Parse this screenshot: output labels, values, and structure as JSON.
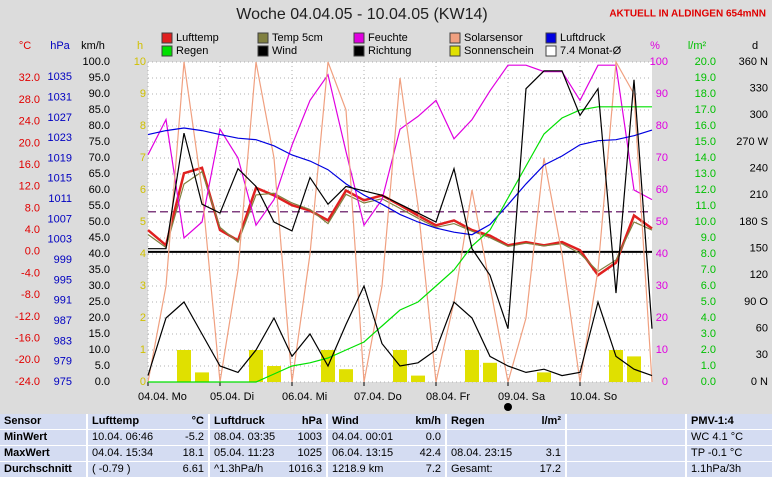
{
  "chart_data": {
    "type": "line",
    "title": "Woche 04.04.05 - 10.04.05 (KW14)",
    "subtitle": "AKTUELL IN ALDINGEN 654mNN",
    "xlim": [
      0,
      7
    ],
    "xticks": [
      {
        "value": 0,
        "label": "04.04. Mo"
      },
      {
        "value": 1,
        "label": "05.04. Di"
      },
      {
        "value": 2,
        "label": "06.04. Mi"
      },
      {
        "value": 3,
        "label": "07.04. Do"
      },
      {
        "value": 4,
        "label": "08.04. Fr"
      },
      {
        "value": 5,
        "label": "09.04. Sa"
      },
      {
        "value": 6,
        "label": "10.04. So"
      }
    ],
    "grid": true,
    "axes": [
      {
        "unit": "°C",
        "color": "#e00000",
        "lim": [
          -24,
          35
        ],
        "zero_line": true,
        "ticks": [
          {
            "value": 32,
            "label": "32.0"
          },
          {
            "value": 28,
            "label": "28.0"
          },
          {
            "value": 24,
            "label": "24.0"
          },
          {
            "value": 20,
            "label": "20.0"
          },
          {
            "value": 16,
            "label": "16.0"
          },
          {
            "value": 12,
            "label": "12.0"
          },
          {
            "value": 8,
            "label": "8.0"
          },
          {
            "value": 4,
            "label": "4.0"
          },
          {
            "value": 0,
            "label": "0.0"
          },
          {
            "value": -4,
            "label": "-4.0"
          },
          {
            "value": -8,
            "label": "-8.0"
          },
          {
            "value": -12,
            "label": "-12.0"
          },
          {
            "value": -16,
            "label": "-16.0"
          },
          {
            "value": -20,
            "label": "-20.0"
          },
          {
            "value": -24,
            "label": "-24.0"
          }
        ]
      },
      {
        "unit": "hPa",
        "color": "#0000c0",
        "lim": [
          975,
          1038
        ],
        "ticks": [
          1035,
          1031,
          1027,
          1023,
          1019,
          1015,
          1011,
          1007,
          1003,
          999,
          995,
          991,
          987,
          983,
          979,
          975
        ]
      },
      {
        "unit": "km/h",
        "color": "#000000",
        "lim": [
          0,
          100
        ],
        "grid": true,
        "ticks": [
          {
            "value": 100,
            "label": "100.0"
          },
          {
            "value": 95,
            "label": "95.0"
          },
          {
            "value": 90,
            "label": "90.0"
          },
          {
            "value": 85,
            "label": "85.0"
          },
          {
            "value": 80,
            "label": "80.0"
          },
          {
            "value": 75,
            "label": "75.0"
          },
          {
            "value": 70,
            "label": "70.0"
          },
          {
            "value": 65,
            "label": "65.0"
          },
          {
            "value": 60,
            "label": "60.0"
          },
          {
            "value": 55,
            "label": "55.0"
          },
          {
            "value": 50,
            "label": "50.0"
          },
          {
            "value": 45,
            "label": "45.0"
          },
          {
            "value": 40,
            "label": "40.0"
          },
          {
            "value": 35,
            "label": "35.0"
          },
          {
            "value": 30,
            "label": "30.0"
          },
          {
            "value": 25,
            "label": "25.0"
          },
          {
            "value": 20,
            "label": "20.0"
          },
          {
            "value": 15,
            "label": "15.0"
          },
          {
            "value": 10,
            "label": "10.0"
          },
          {
            "value": 5,
            "label": "5.0"
          },
          {
            "value": 0,
            "label": "0.0"
          }
        ]
      },
      {
        "unit": "h",
        "color": "#d0c000",
        "lim": [
          0,
          10
        ],
        "ticks": [
          10,
          9,
          8,
          7,
          6,
          5,
          4,
          3,
          2,
          1,
          0
        ]
      },
      {
        "unit": "%",
        "color": "#e000e0",
        "lim": [
          0,
          100
        ],
        "ticks": [
          100,
          90,
          80,
          70,
          60,
          50,
          40,
          30,
          20,
          10,
          0
        ]
      },
      {
        "unit": "l/m²",
        "color": "#00c000",
        "lim": [
          0,
          20
        ],
        "ticks": [
          {
            "value": 20,
            "label": "20.0"
          },
          {
            "value": 19,
            "label": "19.0"
          },
          {
            "value": 18,
            "label": "18.0"
          },
          {
            "value": 17,
            "label": "17.0"
          },
          {
            "value": 16,
            "label": "16.0"
          },
          {
            "value": 15,
            "label": "15.0"
          },
          {
            "value": 14,
            "label": "14.0"
          },
          {
            "value": 13,
            "label": "13.0"
          },
          {
            "value": 12,
            "label": "12.0"
          },
          {
            "value": 11,
            "label": "11.0"
          },
          {
            "value": 10,
            "label": "10.0"
          },
          {
            "value": 9,
            "label": "9.0"
          },
          {
            "value": 8,
            "label": "8.0"
          },
          {
            "value": 7,
            "label": "7.0"
          },
          {
            "value": 6,
            "label": "6.0"
          },
          {
            "value": 5,
            "label": "5.0"
          },
          {
            "value": 4,
            "label": "4.0"
          },
          {
            "value": 3,
            "label": "3.0"
          },
          {
            "value": 2,
            "label": "2.0"
          },
          {
            "value": 1,
            "label": "1.0"
          },
          {
            "value": 0,
            "label": "0.0"
          }
        ]
      },
      {
        "unit": "d",
        "color": "#000000",
        "lim": [
          0,
          360
        ],
        "ticks": [
          {
            "value": 360,
            "label": "360 N"
          },
          330,
          300,
          {
            "value": 270,
            "label": "270 W"
          },
          240,
          210,
          {
            "value": 180,
            "label": "180 S"
          },
          150,
          120,
          {
            "value": 90,
            "label": "90 O"
          },
          60,
          30,
          {
            "value": 0,
            "label": "0 N"
          }
        ]
      }
    ],
    "x": [
      0,
      0.25,
      0.5,
      0.75,
      1,
      1.25,
      1.5,
      1.75,
      2,
      2.25,
      2.5,
      2.75,
      3,
      3.25,
      3.5,
      3.75,
      4,
      4.25,
      4.5,
      4.75,
      5,
      5.25,
      5.5,
      5.75,
      6,
      6.25,
      6.5,
      6.75,
      7
    ],
    "series": [
      {
        "name": "Lufttemp",
        "color": "#e02020",
        "axis": "°C",
        "values": [
          4.0,
          1.2,
          14.5,
          15.5,
          4.0,
          2.1,
          11.8,
          10.4,
          8.6,
          7.6,
          5.8,
          11.3,
          9.5,
          10.4,
          8.6,
          6.7,
          4.9,
          5.8,
          4.0,
          3.0,
          1.2,
          1.8,
          1.2,
          1.8,
          0.3,
          -4.3,
          -2.0,
          6.7,
          4.3
        ]
      },
      {
        "name": "Temp 5cm",
        "color": "#808040",
        "axis": "°C",
        "values": [
          3.2,
          0.8,
          12.5,
          14.8,
          4.5,
          1.8,
          10.5,
          10.8,
          9.0,
          7.8,
          5.2,
          10.6,
          9.0,
          9.8,
          8.0,
          6.2,
          4.5,
          5.2,
          3.8,
          2.6,
          1.0,
          1.6,
          1.1,
          1.5,
          -0.3,
          -3.6,
          -1.5,
          5.5,
          4.0
        ]
      },
      {
        "name": "Feuchte",
        "color": "#e000e0",
        "axis": "%",
        "values": [
          71,
          82,
          45,
          50,
          79,
          70,
          49,
          57,
          74,
          88,
          96,
          72,
          49,
          57,
          79,
          83,
          88,
          76,
          82,
          91,
          99,
          99,
          97,
          97,
          88,
          99,
          99,
          60,
          57
        ]
      },
      {
        "name": "Solarsensor",
        "color": "#f0a080",
        "axis": "%",
        "values": [
          0,
          30,
          100,
          60,
          0,
          35,
          100,
          70,
          0,
          40,
          100,
          85,
          0,
          30,
          95,
          55,
          0,
          25,
          60,
          30,
          0,
          20,
          70,
          40,
          0,
          35,
          100,
          90,
          0
        ]
      },
      {
        "name": "Luftdruck",
        "color": "#0000e0",
        "axis": "hPa",
        "values": [
          1023.7,
          1024.5,
          1025,
          1024.5,
          1023.7,
          1023,
          1022.7,
          1021.5,
          1019.7,
          1018.5,
          1016.8,
          1014,
          1011.8,
          1010,
          1008,
          1006.5,
          1005.3,
          1004.5,
          1004,
          1006,
          1009.9,
          1014,
          1017.7,
          1019.5,
          1021.7,
          1022.5,
          1022.7,
          1023.5,
          1024.6
        ]
      },
      {
        "name": "Regen",
        "color": "#00e000",
        "axis": "l/m²",
        "values": [
          0,
          0,
          0,
          0,
          0,
          0,
          0,
          0.5,
          1.0,
          1.2,
          1.5,
          2.0,
          2.5,
          3.5,
          4.5,
          5.0,
          6.0,
          7.0,
          8.5,
          9.5,
          11.5,
          13.5,
          15.5,
          16.5,
          17.0,
          17.2,
          17.2,
          17.2,
          17.2
        ]
      },
      {
        "name": "Wind",
        "color": "#000000",
        "axis": "km/h",
        "values": [
          2,
          20,
          25,
          15,
          5,
          3,
          10,
          20,
          8,
          15,
          5,
          18,
          30,
          12,
          5,
          6,
          10,
          25,
          20,
          8,
          5,
          3,
          4,
          2,
          3,
          25,
          8,
          4,
          2
        ]
      },
      {
        "name": "Richtung",
        "color": "#000000",
        "axis": "d",
        "values": [
          150,
          150,
          280,
          200,
          190,
          240,
          220,
          180,
          170,
          230,
          200,
          220,
          215,
          210,
          200,
          190,
          180,
          240,
          150,
          120,
          60,
          330,
          350,
          350,
          300,
          330,
          100,
          340,
          60
        ]
      },
      {
        "name": "Sonnenschein",
        "color": "#e0e000",
        "axis": "h",
        "type": "bar",
        "values": [
          0,
          0,
          1.0,
          0.3,
          0,
          0,
          1.0,
          0.5,
          0,
          0,
          1.0,
          0.4,
          0,
          0,
          1.0,
          0.2,
          0,
          0,
          1.0,
          0.6,
          0,
          0,
          0.3,
          0,
          0,
          0,
          1.0,
          0.8,
          0
        ]
      }
    ],
    "reference": {
      "name": "7.4 Monat-Ø",
      "value": 7.4,
      "axis": "°C",
      "color": "#804080"
    }
  },
  "table": {
    "header": "Sensor",
    "columns": [
      {
        "title": "Lufttemp",
        "unit": "°C"
      },
      {
        "title": "Luftdruck",
        "unit": "hPa"
      },
      {
        "title": "Wind",
        "unit": "km/h"
      },
      {
        "title": "Regen",
        "unit": "l/m²"
      }
    ],
    "pmv_title": "PMV-1:4",
    "rows": [
      {
        "label": "MinWert",
        "cells": [
          [
            "10.04. 06:46",
            "-5.2"
          ],
          [
            "08.04. 03:35",
            "1003"
          ],
          [
            "04.04. 00:01",
            "0.0"
          ],
          null
        ],
        "pmv": "WC 4.1 °C"
      },
      {
        "label": "MaxWert",
        "cells": [
          [
            "04.04. 15:34",
            "18.1"
          ],
          [
            "05.04. 11:23",
            "1025"
          ],
          [
            "06.04. 13:15",
            "42.4"
          ],
          [
            "08.04. 23:15",
            "3.1"
          ]
        ],
        "pmv": "TP -0.1 °C"
      },
      {
        "label": "Durchschnitt",
        "cells": [
          [
            "( -0.79 )",
            "6.61"
          ],
          [
            "^1.3hPa/h",
            "1016.3"
          ],
          [
            "1218.9 km",
            "7.2"
          ],
          [
            "Gesamt:",
            "17.2"
          ]
        ],
        "pmv": "1.1hPa/3h"
      }
    ]
  }
}
